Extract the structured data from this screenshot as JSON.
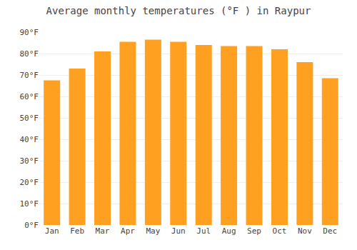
{
  "chart_data": {
    "type": "bar",
    "title": "Average monthly temperatures (°F ) in Raypur",
    "categories": [
      "Jan",
      "Feb",
      "Mar",
      "Apr",
      "May",
      "Jun",
      "Jul",
      "Aug",
      "Sep",
      "Oct",
      "Nov",
      "Dec"
    ],
    "values": [
      67.5,
      73.0,
      81.0,
      85.5,
      86.5,
      85.5,
      84.0,
      83.5,
      83.5,
      82.0,
      76.0,
      68.5
    ],
    "color": "#FFA020",
    "ylim": [
      0,
      90
    ],
    "yticks": [
      {
        "value": 0,
        "label": "0°F"
      },
      {
        "value": 10,
        "label": "10°F"
      },
      {
        "value": 20,
        "label": "20°F"
      },
      {
        "value": 30,
        "label": "30°F"
      },
      {
        "value": 40,
        "label": "40°F"
      },
      {
        "value": 50,
        "label": "50°F"
      },
      {
        "value": 60,
        "label": "60°F"
      },
      {
        "value": 70,
        "label": "70°F"
      },
      {
        "value": 80,
        "label": "80°F"
      },
      {
        "value": 90,
        "label": "90°F"
      }
    ],
    "grid": true
  }
}
